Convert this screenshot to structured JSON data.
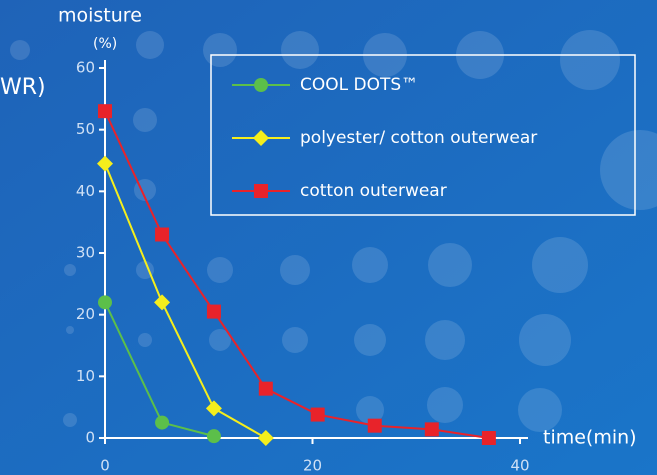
{
  "chart_data": {
    "type": "line",
    "y_label": "moisture",
    "y_unit": "(%)",
    "x_label": "time(min)",
    "side_note": "WR)",
    "xlim": [
      0,
      40
    ],
    "xticks": [
      0,
      20,
      40
    ],
    "ylim": [
      0,
      60
    ],
    "yticks": [
      0,
      10,
      20,
      30,
      40,
      50,
      60
    ],
    "series": [
      {
        "name": "COOL DOTS™",
        "color": "#5cbf4a",
        "marker": "circle",
        "x": [
          0,
          5.5,
          10.5
        ],
        "values": [
          22,
          2.5,
          0.3
        ]
      },
      {
        "name": "polyester/ cotton outerwear",
        "color": "#f5ee1c",
        "marker": "diamond",
        "x": [
          0,
          5.5,
          10.5,
          15.5
        ],
        "values": [
          44.5,
          22,
          4.8,
          0
        ]
      },
      {
        "name": "cotton outerwear",
        "color": "#e8232a",
        "marker": "square",
        "x": [
          0,
          5.5,
          10.5,
          15.5,
          20.5,
          26,
          31.5,
          37
        ],
        "values": [
          53,
          33,
          20.5,
          8,
          3.8,
          2,
          1.4,
          0
        ]
      }
    ]
  }
}
